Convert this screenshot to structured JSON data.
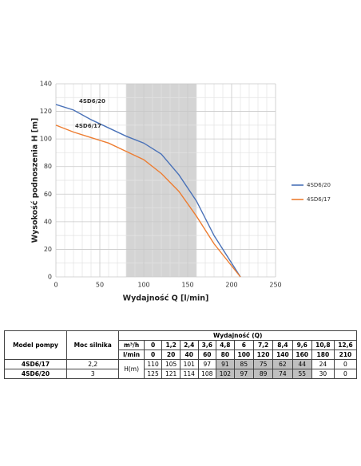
{
  "chart_data": {
    "type": "line",
    "x": [
      0,
      20,
      40,
      60,
      80,
      100,
      120,
      140,
      160,
      180,
      210
    ],
    "series": [
      {
        "name": "4SD6/20",
        "color": "#4a72b8",
        "values": [
          125,
          121,
          114,
          108,
          102,
          97,
          89,
          74,
          55,
          30,
          0
        ]
      },
      {
        "name": "4SD6/17",
        "color": "#ed7d31",
        "values": [
          110,
          105,
          101,
          97,
          91,
          85,
          75,
          62,
          44,
          24,
          0
        ]
      }
    ],
    "xlim": [
      0,
      250
    ],
    "xticks": [
      0,
      50,
      100,
      150,
      200,
      250
    ],
    "ylim": [
      0,
      140
    ],
    "yticks": [
      0,
      20,
      40,
      60,
      80,
      100,
      120,
      140
    ],
    "xlabel": "Wydajność Q [l/min]",
    "ylabel": "Wysokość podnoszenia H [m]",
    "grid": true,
    "legend": "right",
    "shaded_xrange": [
      80,
      160
    ],
    "shaded_color": "#d4d4d4",
    "annotations": [
      "4SD6/20",
      "4SD6/17"
    ]
  },
  "table": {
    "model_header": "Model pompy",
    "power_header": "Moc silnika",
    "flow_header": "Wydajność (Q)",
    "unit_rows": [
      {
        "unit": "m³/h",
        "values": [
          "0",
          "1,2",
          "2,4",
          "3,6",
          "4,8",
          "6",
          "7,2",
          "8,4",
          "9,6",
          "10,8",
          "12,6"
        ]
      },
      {
        "unit": "l/min",
        "values": [
          0,
          20,
          40,
          60,
          80,
          100,
          120,
          140,
          160,
          180,
          210
        ]
      }
    ],
    "head_label": "H(m)",
    "rows": [
      {
        "model": "4SD6/17",
        "power": "2,2",
        "values": [
          110,
          105,
          101,
          97,
          91,
          85,
          75,
          62,
          44,
          24,
          0
        ]
      },
      {
        "model": "4SD6/20",
        "power": "3",
        "values": [
          125,
          121,
          114,
          108,
          102,
          97,
          89,
          74,
          55,
          30,
          0
        ]
      }
    ]
  }
}
